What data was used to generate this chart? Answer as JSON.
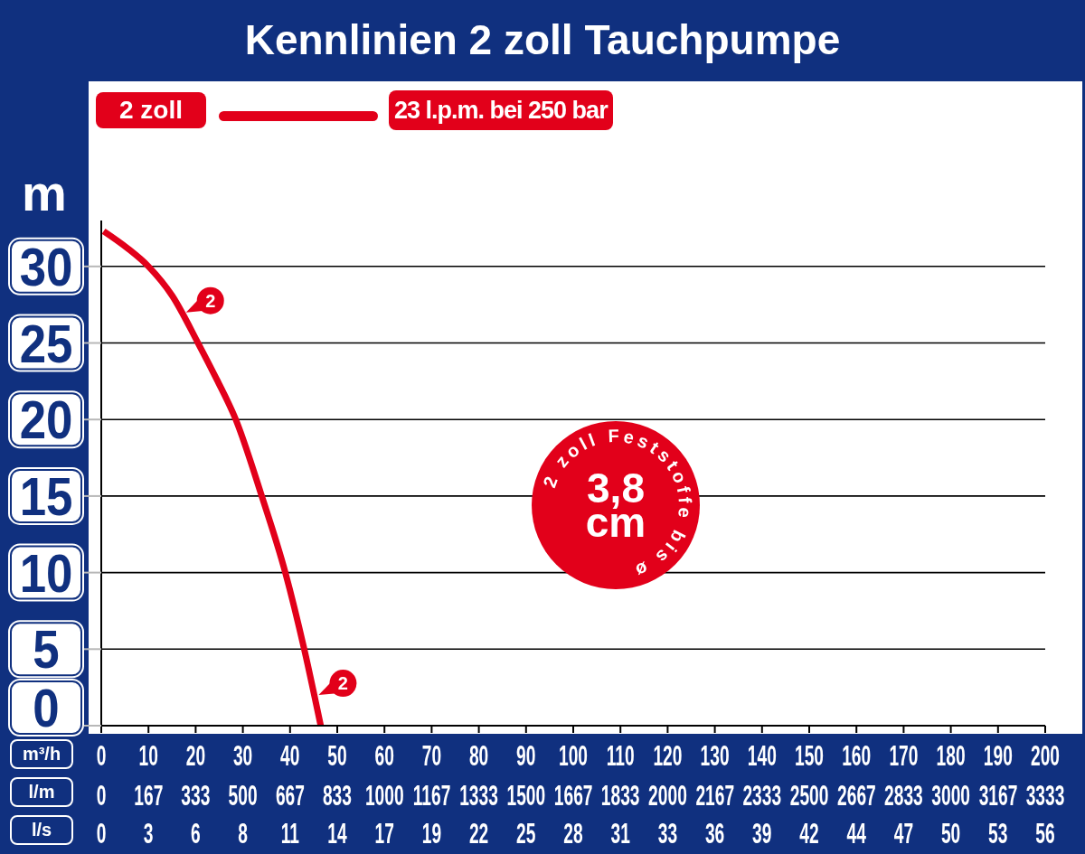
{
  "chart_data": {
    "type": "line",
    "title": "Kennlinien 2 zoll Tauchpumpe",
    "xlabel": "m³/h",
    "x2label": "l/m",
    "ylabel": "m",
    "series": [
      {
        "name": "2 zoll",
        "color": "#e2001a",
        "x": [
          0.5,
          5.5,
          10,
          15,
          20.5,
          24.5,
          28.5,
          34,
          39,
          43,
          46.5
        ],
        "values": [
          32.3,
          31.2,
          30,
          28.1,
          25,
          22.6,
          20,
          15,
          10,
          5,
          0
        ]
      }
    ],
    "xlim": [
      0,
      200
    ],
    "xticks": [
      0,
      10,
      20,
      30,
      40,
      50,
      60,
      70,
      80,
      90,
      100,
      110,
      120,
      130,
      140,
      150,
      160,
      170,
      180,
      190,
      200
    ],
    "x2lim": [
      0,
      3333
    ],
    "x2ticks": [
      0,
      167,
      333,
      500,
      667,
      833,
      1000,
      1167,
      1333,
      1500,
      1667,
      1833,
      2000,
      2167,
      2333,
      2500,
      2667,
      2833,
      3000,
      3167,
      3333
    ],
    "ylim": [
      0,
      33
    ],
    "yticks": [
      0,
      5,
      10,
      15,
      20,
      25,
      30
    ],
    "grid": "y",
    "legend": "top left",
    "line_style": "solid",
    "annotations": [
      "23 l.p.m. bei 250 bar",
      "2 zoll Feststoffe bis ø",
      "3,8 cm",
      "l/s",
      "0 3 6 8 11 14 17 19 22 25 28 31 33 36 39 42 44 47 50 53 56",
      {
        "text": "2",
        "x": 17,
        "y": 27
      },
      {
        "text": "2",
        "x": 45.1,
        "y": 2
      }
    ]
  }
}
